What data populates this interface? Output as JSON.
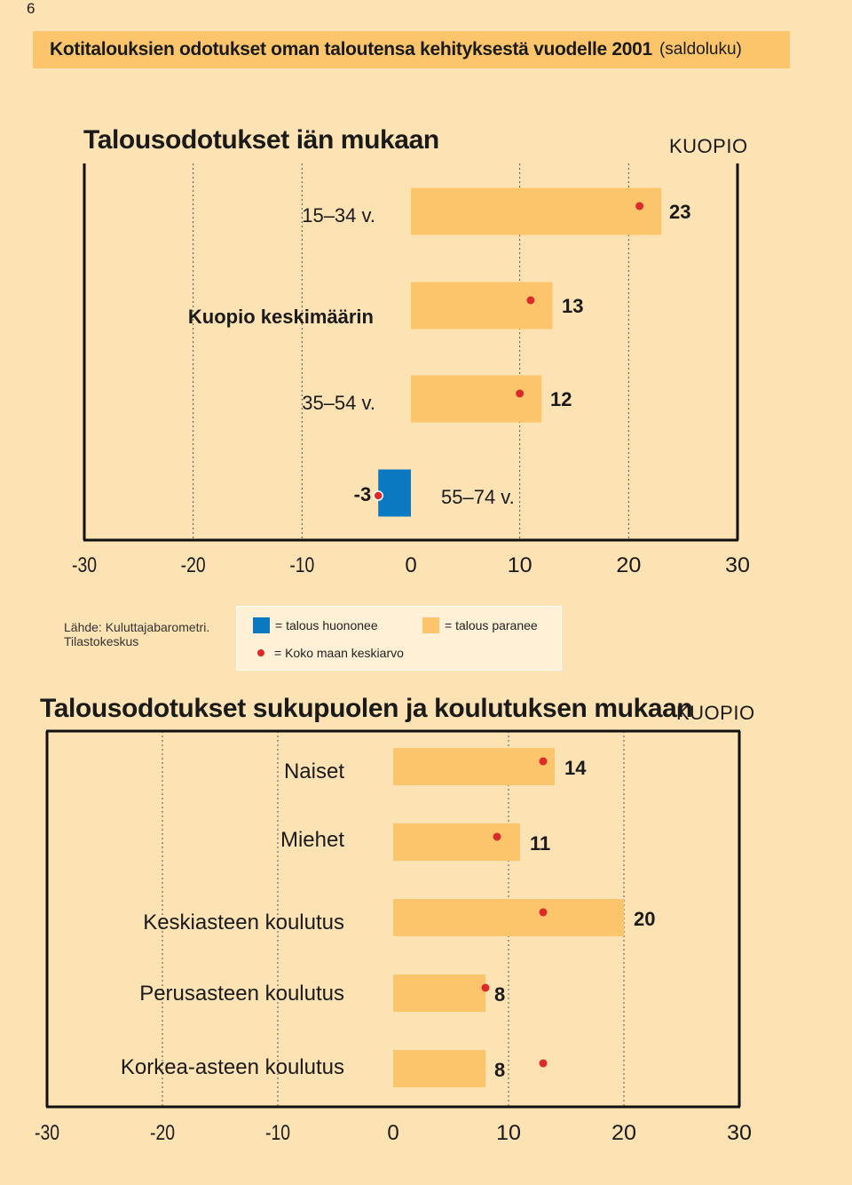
{
  "page_number": "6",
  "header": {
    "title_bold": "Kotitalouksien odotukset oman taloutensa kehityksestä vuodelle 2001",
    "title_light": "(saldoluku)"
  },
  "legend": {
    "source_line1": "Lähde: Kuluttajabarometri.",
    "source_line2": "Tilastokeskus",
    "negative": "= talous huononee",
    "positive": "= talous paranee",
    "dot": "= Koko maan keskiarvo"
  },
  "colors": {
    "negative": "#0b78c2",
    "positive": "#fcc56c",
    "dot": "#dc2a2a",
    "background": "#fde2b4"
  },
  "chart_data": [
    {
      "type": "bar",
      "orientation": "horizontal",
      "title": "Talousodotukset iän mukaan",
      "region": "KUOPIO",
      "xlim": [
        -30,
        30
      ],
      "xticks": [
        "-30",
        "-20",
        "-10",
        "0",
        "10",
        "20",
        "30"
      ],
      "categories": [
        "15–34 v.",
        "Kuopio keskimäärin",
        "35–54 v.",
        "55–74 v."
      ],
      "values": [
        23,
        13,
        12,
        -3
      ],
      "value_labels": [
        "23",
        "13",
        "12",
        "-3"
      ],
      "national_average": [
        21,
        11,
        10,
        -3
      ],
      "grid": true
    },
    {
      "type": "bar",
      "orientation": "horizontal",
      "title": "Talousodotukset sukupuolen ja koulutuksen mukaan",
      "region": "KUOPIO",
      "xlim": [
        -30,
        30
      ],
      "xticks": [
        "-30",
        "-20",
        "-10",
        "0",
        "10",
        "20",
        "30"
      ],
      "categories": [
        "Naiset",
        "Miehet",
        "Keskiasteen koulutus",
        "Perusasteen koulutus",
        "Korkea-asteen koulutus"
      ],
      "values": [
        14,
        11,
        20,
        8,
        8
      ],
      "value_labels": [
        "14",
        "11",
        "20",
        "8",
        "8"
      ],
      "national_average": [
        13,
        9,
        13,
        8,
        13
      ],
      "grid": true
    }
  ]
}
